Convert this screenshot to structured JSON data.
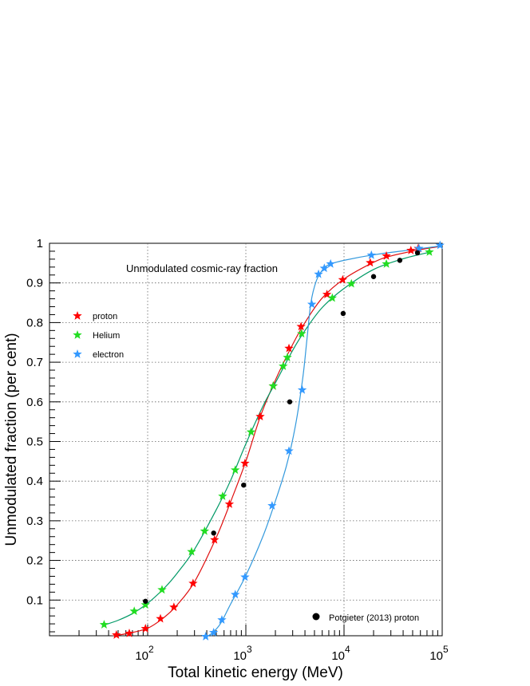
{
  "chart_data": {
    "type": "scatter",
    "title": "",
    "annotation": "Unmodulated cosmic-ray fraction",
    "xlabel": "Total kinetic energy (MeV)",
    "ylabel": "Unmodulated fraction (per cent)",
    "xscale": "log",
    "xlim": [
      10,
      100000
    ],
    "ylim": [
      0.01,
      1.0
    ],
    "grid": true,
    "x_ticks": [
      {
        "value": 100,
        "base": "10",
        "exp": "2"
      },
      {
        "value": 1000,
        "base": "10",
        "exp": "3"
      },
      {
        "value": 10000,
        "base": "10",
        "exp": "4"
      },
      {
        "value": 100000,
        "base": "10",
        "exp": "5"
      }
    ],
    "y_ticks": [
      {
        "value": 0.1,
        "label": "0.1"
      },
      {
        "value": 0.2,
        "label": "0.2"
      },
      {
        "value": 0.3,
        "label": "0.3"
      },
      {
        "value": 0.4,
        "label": "0.4"
      },
      {
        "value": 0.5,
        "label": "0.5"
      },
      {
        "value": 0.6,
        "label": "0.6"
      },
      {
        "value": 0.7,
        "label": "0.7"
      },
      {
        "value": 0.8,
        "label": "0.8"
      },
      {
        "value": 0.9,
        "label": "0.9"
      },
      {
        "value": 1.0,
        "label": "1"
      }
    ],
    "legend_placement": "left",
    "series": [
      {
        "name": "proton",
        "marker": "star",
        "color": "#ff0000",
        "line_color": "#e01010",
        "points": [
          [
            48,
            0.012
          ],
          [
            65,
            0.016
          ],
          [
            95,
            0.028
          ],
          [
            135,
            0.053
          ],
          [
            185,
            0.082
          ],
          [
            290,
            0.142
          ],
          [
            480,
            0.252
          ],
          [
            680,
            0.342
          ],
          [
            980,
            0.445
          ],
          [
            1400,
            0.563
          ],
          [
            1900,
            0.64
          ],
          [
            2750,
            0.735
          ],
          [
            3650,
            0.79
          ],
          [
            6700,
            0.871
          ],
          [
            9700,
            0.908
          ],
          [
            18500,
            0.951
          ],
          [
            27000,
            0.968
          ],
          [
            48000,
            0.982
          ],
          [
            57000,
            0.987
          ]
        ],
        "curve": [
          [
            40,
            0.008
          ],
          [
            60,
            0.015
          ],
          [
            100,
            0.029
          ],
          [
            150,
            0.058
          ],
          [
            200,
            0.088
          ],
          [
            300,
            0.146
          ],
          [
            500,
            0.258
          ],
          [
            700,
            0.348
          ],
          [
            1000,
            0.45
          ],
          [
            1400,
            0.562
          ],
          [
            2000,
            0.655
          ],
          [
            3000,
            0.745
          ],
          [
            4000,
            0.8
          ],
          [
            6000,
            0.862
          ],
          [
            10000,
            0.91
          ],
          [
            20000,
            0.952
          ],
          [
            30000,
            0.968
          ],
          [
            60000,
            0.984
          ],
          [
            90000,
            0.991
          ]
        ]
      },
      {
        "name": "Helium",
        "marker": "star",
        "color": "#22dd22",
        "line_color": "#009966",
        "points": [
          [
            36,
            0.038
          ],
          [
            73,
            0.072
          ],
          [
            95,
            0.088
          ],
          [
            140,
            0.126
          ],
          [
            280,
            0.222
          ],
          [
            380,
            0.274
          ],
          [
            580,
            0.362
          ],
          [
            780,
            0.428
          ],
          [
            1130,
            0.524
          ],
          [
            1900,
            0.64
          ],
          [
            2400,
            0.69
          ],
          [
            2650,
            0.712
          ],
          [
            3700,
            0.772
          ],
          [
            7600,
            0.862
          ],
          [
            11900,
            0.898
          ],
          [
            27000,
            0.948
          ],
          [
            74000,
            0.978
          ]
        ],
        "curve": [
          [
            36,
            0.037
          ],
          [
            50,
            0.049
          ],
          [
            70,
            0.066
          ],
          [
            100,
            0.092
          ],
          [
            150,
            0.132
          ],
          [
            200,
            0.168
          ],
          [
            300,
            0.228
          ],
          [
            500,
            0.328
          ],
          [
            700,
            0.402
          ],
          [
            1000,
            0.494
          ],
          [
            1500,
            0.59
          ],
          [
            2000,
            0.648
          ],
          [
            3000,
            0.73
          ],
          [
            4000,
            0.78
          ],
          [
            6000,
            0.838
          ],
          [
            10000,
            0.886
          ],
          [
            20000,
            0.934
          ],
          [
            40000,
            0.961
          ],
          [
            76000,
            0.978
          ]
        ]
      },
      {
        "name": "electron",
        "marker": "star",
        "color": "#3399ff",
        "line_color": "#3399dd",
        "points": [
          [
            390,
            0.008
          ],
          [
            470,
            0.018
          ],
          [
            570,
            0.05
          ],
          [
            780,
            0.114
          ],
          [
            980,
            0.158
          ],
          [
            1850,
            0.338
          ],
          [
            2750,
            0.476
          ],
          [
            3750,
            0.63
          ],
          [
            4700,
            0.846
          ],
          [
            5500,
            0.922
          ],
          [
            6300,
            0.937
          ],
          [
            7300,
            0.948
          ],
          [
            19000,
            0.97
          ],
          [
            58000,
            0.987
          ],
          [
            95000,
            0.995
          ]
        ],
        "curve": [
          [
            380,
            0.006
          ],
          [
            450,
            0.016
          ],
          [
            550,
            0.04
          ],
          [
            700,
            0.09
          ],
          [
            1000,
            0.162
          ],
          [
            1500,
            0.262
          ],
          [
            2000,
            0.35
          ],
          [
            2600,
            0.44
          ],
          [
            3200,
            0.54
          ],
          [
            3800,
            0.66
          ],
          [
            4200,
            0.76
          ],
          [
            4600,
            0.85
          ],
          [
            5200,
            0.904
          ],
          [
            6000,
            0.932
          ],
          [
            7000,
            0.946
          ],
          [
            10000,
            0.957
          ],
          [
            20000,
            0.971
          ],
          [
            50000,
            0.984
          ],
          [
            100000,
            0.994
          ]
        ]
      },
      {
        "name": "Potgieter (2013) proton",
        "marker": "circle",
        "color": "#000000",
        "points": [
          [
            95,
            0.097
          ],
          [
            470,
            0.269
          ],
          [
            950,
            0.39
          ],
          [
            2800,
            0.6
          ],
          [
            9800,
            0.823
          ],
          [
            20000,
            0.916
          ],
          [
            37000,
            0.957
          ],
          [
            56000,
            0.976
          ]
        ]
      }
    ]
  }
}
